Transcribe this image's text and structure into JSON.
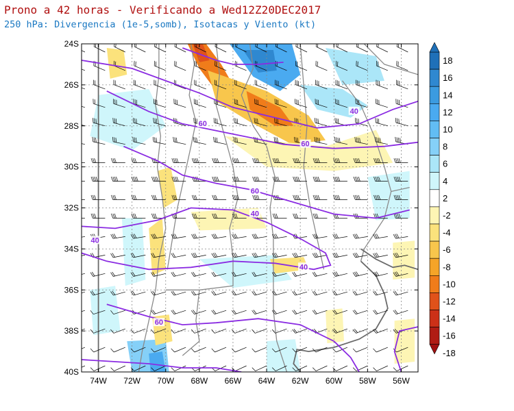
{
  "title": {
    "line1": "Prono a 42 horas - Verificando a Wed12Z20DEC2017",
    "line2": "250 hPa: Divergencia (1e-5,somb), Isotacas y Viento (kt)"
  },
  "map": {
    "lat_labels": [
      "24S",
      "26S",
      "28S",
      "30S",
      "32S",
      "34S",
      "36S",
      "38S",
      "40S"
    ],
    "lon_labels": [
      "74W",
      "72W",
      "70W",
      "68W",
      "66W",
      "64W",
      "62W",
      "60W",
      "58W",
      "56W"
    ],
    "lat_range": [
      -40,
      -24
    ],
    "lon_range": [
      -75,
      -55
    ]
  },
  "isotachs": {
    "units": "kt",
    "color": "#8a2be2",
    "labels": [
      {
        "text": "60",
        "lon": -67.8,
        "lat": -27.9
      },
      {
        "text": "60",
        "lon": -61.7,
        "lat": -28.9
      },
      {
        "text": "40",
        "lon": -58.8,
        "lat": -27.3
      },
      {
        "text": "60",
        "lon": -64.7,
        "lat": -31.2
      },
      {
        "text": "40",
        "lon": -64.7,
        "lat": -32.3
      },
      {
        "text": "40",
        "lon": -74.2,
        "lat": -33.6
      },
      {
        "text": "40",
        "lon": -61.8,
        "lat": -34.9
      },
      {
        "text": "60",
        "lon": -70.4,
        "lat": -37.6
      }
    ]
  },
  "colorbar": {
    "labels": [
      "18",
      "16",
      "14",
      "12",
      "10",
      "8",
      "6",
      "4",
      "2",
      "-2",
      "-4",
      "-6",
      "-8",
      "-10",
      "-12",
      "-14",
      "-16",
      "-18"
    ],
    "colors": [
      "#1f70b8",
      "#2f88d0",
      "#3b9be0",
      "#4aaaf0",
      "#62bdf4",
      "#85d0f8",
      "#abe6f8",
      "#cff6fb",
      "#ffffff",
      "#fdf5b4",
      "#fbe27c",
      "#f8c64c",
      "#f5a428",
      "#f07c1a",
      "#e0521a",
      "#cc3018",
      "#b01c14"
    ]
  },
  "divergence_patches": [
    {
      "color": "#f07c1a",
      "points": [
        [
          -68.7,
          -24.0
        ],
        [
          -67.6,
          -24.0
        ],
        [
          -66.7,
          -25.0
        ],
        [
          -66.0,
          -26.0
        ],
        [
          -67.0,
          -26.3
        ],
        [
          -68.0,
          -25.2
        ]
      ]
    },
    {
      "color": "#e0521a",
      "points": [
        [
          -68.4,
          -24.0
        ],
        [
          -67.8,
          -24.0
        ],
        [
          -67.4,
          -24.8
        ],
        [
          -68.0,
          -24.9
        ]
      ]
    },
    {
      "color": "#f8c64c",
      "points": [
        [
          -67.5,
          -25.3
        ],
        [
          -64.0,
          -26.3
        ],
        [
          -61.5,
          -27.5
        ],
        [
          -60.5,
          -28.7
        ],
        [
          -62.5,
          -28.9
        ],
        [
          -65.0,
          -27.8
        ],
        [
          -67.0,
          -26.8
        ]
      ]
    },
    {
      "color": "#f07c1a",
      "points": [
        [
          -65.2,
          -26.3
        ],
        [
          -63.2,
          -27.1
        ],
        [
          -62.4,
          -28.0
        ],
        [
          -63.5,
          -28.0
        ],
        [
          -65.0,
          -27.2
        ]
      ]
    },
    {
      "color": "#fdf5b4",
      "points": [
        [
          -66.5,
          -28.5
        ],
        [
          -60.5,
          -29.0
        ],
        [
          -57.5,
          -28.2
        ],
        [
          -56.5,
          -29.8
        ],
        [
          -60.0,
          -30.2
        ],
        [
          -64.0,
          -30.0
        ]
      ]
    },
    {
      "color": "#4aaaf0",
      "points": [
        [
          -66.2,
          -24.0
        ],
        [
          -62.5,
          -24.0
        ],
        [
          -62.0,
          -25.5
        ],
        [
          -63.2,
          -26.3
        ],
        [
          -64.8,
          -25.6
        ]
      ]
    },
    {
      "color": "#2f88d0",
      "points": [
        [
          -65.4,
          -24.3
        ],
        [
          -63.6,
          -24.3
        ],
        [
          -63.4,
          -25.3
        ],
        [
          -64.5,
          -25.4
        ]
      ]
    },
    {
      "color": "#abe6f8",
      "points": [
        [
          -62.0,
          -26.0
        ],
        [
          -59.5,
          -26.2
        ],
        [
          -58.0,
          -27.0
        ],
        [
          -59.0,
          -27.6
        ],
        [
          -61.0,
          -27.2
        ]
      ]
    },
    {
      "color": "#abe6f8",
      "points": [
        [
          -60.5,
          -24.2
        ],
        [
          -57.5,
          -24.6
        ],
        [
          -57.0,
          -25.8
        ],
        [
          -59.5,
          -26.0
        ]
      ]
    },
    {
      "color": "#cff6fb",
      "points": [
        [
          -74.0,
          -26.5
        ],
        [
          -71.0,
          -26.2
        ],
        [
          -70.0,
          -28.0
        ],
        [
          -72.0,
          -29.2
        ],
        [
          -74.5,
          -28.5
        ]
      ]
    },
    {
      "color": "#fbe27c",
      "points": [
        [
          -73.5,
          -24.2
        ],
        [
          -72.5,
          -24.3
        ],
        [
          -72.3,
          -25.5
        ],
        [
          -73.3,
          -25.7
        ]
      ]
    },
    {
      "color": "#fbe27c",
      "points": [
        [
          -70.5,
          -30.2
        ],
        [
          -69.7,
          -30.0
        ],
        [
          -69.3,
          -31.6
        ],
        [
          -70.1,
          -32.0
        ]
      ]
    },
    {
      "color": "#fbe27c",
      "points": [
        [
          -71.0,
          -33.0
        ],
        [
          -70.2,
          -32.5
        ],
        [
          -70.0,
          -35.0
        ],
        [
          -70.8,
          -35.3
        ]
      ]
    },
    {
      "color": "#cff6fb",
      "points": [
        [
          -72.6,
          -32.5
        ],
        [
          -71.4,
          -32.5
        ],
        [
          -71.2,
          -35.5
        ],
        [
          -72.4,
          -35.8
        ]
      ]
    },
    {
      "color": "#85d0f8",
      "points": [
        [
          -72.3,
          -38.5
        ],
        [
          -70.0,
          -38.4
        ],
        [
          -69.8,
          -40.0
        ],
        [
          -72.0,
          -40.0
        ]
      ]
    },
    {
      "color": "#4aaaf0",
      "points": [
        [
          -71.0,
          -39.1
        ],
        [
          -70.2,
          -39.0
        ],
        [
          -70.0,
          -40.0
        ],
        [
          -70.9,
          -40.0
        ]
      ]
    },
    {
      "color": "#fbe27c",
      "points": [
        [
          -70.8,
          -37.3
        ],
        [
          -69.8,
          -37.2
        ],
        [
          -69.6,
          -38.5
        ],
        [
          -70.6,
          -38.7
        ]
      ]
    },
    {
      "color": "#cff6fb",
      "points": [
        [
          -74.5,
          -36.0
        ],
        [
          -73.0,
          -35.8
        ],
        [
          -72.7,
          -38.0
        ],
        [
          -74.3,
          -38.2
        ]
      ]
    },
    {
      "color": "#cff6fb",
      "points": [
        [
          -68.0,
          -34.5
        ],
        [
          -63.5,
          -34.3
        ],
        [
          -62.5,
          -35.5
        ],
        [
          -66.0,
          -35.9
        ]
      ]
    },
    {
      "color": "#fdf5b4",
      "points": [
        [
          -68.5,
          -32.2
        ],
        [
          -64.5,
          -32.0
        ],
        [
          -64.0,
          -33.0
        ],
        [
          -68.0,
          -33.1
        ]
      ]
    },
    {
      "color": "#fbe27c",
      "points": [
        [
          -63.8,
          -34.5
        ],
        [
          -61.8,
          -34.4
        ],
        [
          -61.5,
          -35.0
        ],
        [
          -63.5,
          -35.2
        ]
      ]
    },
    {
      "color": "#fdf5b4",
      "points": [
        [
          -60.5,
          -37.0
        ],
        [
          -59.5,
          -36.9
        ],
        [
          -59.4,
          -38.5
        ],
        [
          -60.4,
          -38.6
        ]
      ]
    },
    {
      "color": "#cff6fb",
      "points": [
        [
          -64.0,
          -38.5
        ],
        [
          -62.3,
          -38.4
        ],
        [
          -62.0,
          -40.0
        ],
        [
          -64.0,
          -40.0
        ]
      ]
    },
    {
      "color": "#fdf5b4",
      "points": [
        [
          -56.5,
          -33.7
        ],
        [
          -55.2,
          -33.6
        ],
        [
          -55.2,
          -35.4
        ],
        [
          -56.5,
          -35.5
        ]
      ]
    },
    {
      "color": "#fdf5b4",
      "points": [
        [
          -56.4,
          -37.5
        ],
        [
          -55.2,
          -37.4
        ],
        [
          -55.2,
          -39.5
        ],
        [
          -56.4,
          -39.6
        ]
      ]
    },
    {
      "color": "#cff6fb",
      "points": [
        [
          -58.0,
          -30.5
        ],
        [
          -55.5,
          -30.2
        ],
        [
          -55.5,
          -32.5
        ],
        [
          -57.5,
          -32.6
        ]
      ]
    }
  ],
  "isotach_lines": [
    [
      [
        -75.0,
        -24.8
      ],
      [
        -72.0,
        -25.2
      ],
      [
        -70.0,
        -25.8
      ],
      [
        -68.0,
        -26.4
      ],
      [
        -66.0,
        -27.1
      ],
      [
        -63.0,
        -27.7
      ],
      [
        -61.0,
        -28.1
      ],
      [
        -58.5,
        -27.9
      ],
      [
        -56.5,
        -27.2
      ],
      [
        -55.0,
        -26.8
      ]
    ],
    [
      [
        -73.5,
        -26.3
      ],
      [
        -71.0,
        -27.3
      ],
      [
        -69.0,
        -27.9
      ],
      [
        -66.0,
        -28.4
      ],
      [
        -63.0,
        -28.9
      ],
      [
        -60.0,
        -29.1
      ],
      [
        -57.0,
        -29.0
      ],
      [
        -55.0,
        -28.8
      ]
    ],
    [
      [
        -69.0,
        -24.2
      ],
      [
        -68.0,
        -24.5
      ],
      [
        -67.0,
        -24.8
      ],
      [
        -66.0,
        -25.0
      ],
      [
        -64.5,
        -25.0
      ],
      [
        -63.0,
        -24.9
      ]
    ],
    [
      [
        -72.5,
        -29.0
      ],
      [
        -70.5,
        -29.7
      ],
      [
        -69.0,
        -30.4
      ],
      [
        -67.0,
        -30.8
      ],
      [
        -65.0,
        -31.1
      ],
      [
        -62.5,
        -31.7
      ],
      [
        -60.0,
        -32.3
      ],
      [
        -57.5,
        -32.5
      ],
      [
        -55.5,
        -32.1
      ]
    ],
    [
      [
        -75.0,
        -32.9
      ],
      [
        -73.0,
        -33.0
      ],
      [
        -70.5,
        -32.6
      ],
      [
        -68.5,
        -32.0
      ],
      [
        -66.0,
        -32.1
      ],
      [
        -64.0,
        -32.7
      ],
      [
        -62.0,
        -33.5
      ],
      [
        -60.5,
        -34.2
      ],
      [
        -60.2,
        -34.8
      ],
      [
        -61.2,
        -35.0
      ],
      [
        -63.5,
        -34.7
      ],
      [
        -66.0,
        -34.6
      ],
      [
        -68.5,
        -34.9
      ],
      [
        -71.0,
        -35.0
      ],
      [
        -73.5,
        -34.6
      ],
      [
        -75.0,
        -34.2
      ]
    ],
    [
      [
        -73.5,
        -36.7
      ],
      [
        -71.0,
        -37.3
      ],
      [
        -69.0,
        -37.7
      ],
      [
        -67.0,
        -37.6
      ],
      [
        -64.5,
        -37.4
      ],
      [
        -62.0,
        -37.7
      ],
      [
        -60.0,
        -38.5
      ],
      [
        -59.0,
        -39.3
      ],
      [
        -58.5,
        -40.0
      ]
    ],
    [
      [
        -75.0,
        -39.4
      ],
      [
        -73.0,
        -39.5
      ],
      [
        -71.0,
        -39.6
      ],
      [
        -69.0,
        -39.8
      ],
      [
        -67.0,
        -39.8
      ],
      [
        -65.5,
        -40.0
      ]
    ],
    [
      [
        -56.0,
        -40.0
      ],
      [
        -56.4,
        -39.0
      ],
      [
        -56.1,
        -38.0
      ],
      [
        -55.0,
        -37.8
      ]
    ]
  ],
  "borders": [
    [
      [
        -70.4,
        -24.0
      ],
      [
        -70.4,
        -25.5
      ],
      [
        -70.6,
        -27.0
      ],
      [
        -70.3,
        -28.5
      ],
      [
        -70.5,
        -30.0
      ],
      [
        -70.2,
        -31.5
      ],
      [
        -70.0,
        -33.0
      ],
      [
        -70.4,
        -34.5
      ],
      [
        -70.6,
        -36.0
      ],
      [
        -71.0,
        -37.5
      ],
      [
        -71.4,
        -39.0
      ],
      [
        -71.6,
        -40.0
      ]
    ],
    [
      [
        -68.5,
        -24.0
      ],
      [
        -68.3,
        -25.0
      ],
      [
        -68.6,
        -26.5
      ],
      [
        -68.2,
        -27.8
      ],
      [
        -68.5,
        -29.0
      ],
      [
        -68.9,
        -30.5
      ],
      [
        -69.3,
        -32.0
      ],
      [
        -69.6,
        -33.5
      ],
      [
        -69.9,
        -35.0
      ]
    ],
    [
      [
        -67.0,
        -24.0
      ],
      [
        -66.8,
        -25.5
      ],
      [
        -67.0,
        -27.0
      ],
      [
        -66.5,
        -28.5
      ],
      [
        -66.0,
        -30.0
      ],
      [
        -65.7,
        -31.5
      ],
      [
        -66.2,
        -33.0
      ],
      [
        -66.0,
        -34.5
      ]
    ],
    [
      [
        -65.0,
        -24.0
      ],
      [
        -64.8,
        -25.2
      ],
      [
        -65.5,
        -26.5
      ],
      [
        -64.8,
        -28.0
      ],
      [
        -64.0,
        -29.0
      ]
    ],
    [
      [
        -64.0,
        -29.0
      ],
      [
        -63.5,
        -30.5
      ],
      [
        -63.8,
        -32.0
      ],
      [
        -63.6,
        -33.5
      ],
      [
        -63.6,
        -35.0
      ],
      [
        -63.6,
        -37.0
      ],
      [
        -63.4,
        -38.5
      ],
      [
        -62.8,
        -40.0
      ]
    ],
    [
      [
        -66.0,
        -34.5
      ],
      [
        -66.0,
        -35.8
      ],
      [
        -68.0,
        -36.0
      ],
      [
        -70.0,
        -36.0
      ]
    ],
    [
      [
        -68.0,
        -36.0
      ],
      [
        -68.2,
        -37.5
      ],
      [
        -68.0,
        -38.5
      ],
      [
        -69.0,
        -39.2
      ]
    ],
    [
      [
        -62.0,
        -24.0
      ],
      [
        -61.8,
        -26.0
      ],
      [
        -61.6,
        -28.0
      ],
      [
        -61.8,
        -30.0
      ],
      [
        -61.4,
        -32.0
      ],
      [
        -61.0,
        -33.5
      ],
      [
        -60.6,
        -35.0
      ]
    ],
    [
      [
        -59.5,
        -25.8
      ],
      [
        -58.4,
        -27.0
      ],
      [
        -57.6,
        -28.5
      ],
      [
        -57.0,
        -30.0
      ],
      [
        -56.6,
        -31.2
      ],
      [
        -57.0,
        -32.5
      ],
      [
        -58.2,
        -34.0
      ],
      [
        -58.4,
        -34.6
      ]
    ],
    [
      [
        -58.2,
        -24.0
      ],
      [
        -57.0,
        -25.0
      ],
      [
        -55.0,
        -25.5
      ]
    ],
    [
      [
        -56.6,
        -31.2
      ],
      [
        -55.5,
        -31.0
      ]
    ]
  ],
  "coast": [
    [
      [
        -58.4,
        -34.6
      ],
      [
        -57.5,
        -35.3
      ],
      [
        -57.0,
        -36.2
      ],
      [
        -56.8,
        -36.9
      ],
      [
        -57.5,
        -37.9
      ],
      [
        -58.5,
        -38.4
      ],
      [
        -60.0,
        -38.8
      ],
      [
        -61.5,
        -39.0
      ],
      [
        -62.2,
        -38.9
      ],
      [
        -62.4,
        -39.6
      ],
      [
        -62.0,
        -40.0
      ]
    ],
    [
      [
        -55.0,
        -35.0
      ],
      [
        -55.8,
        -34.8
      ],
      [
        -56.5,
        -34.9
      ],
      [
        -57.5,
        -34.5
      ],
      [
        -58.4,
        -34.0
      ]
    ],
    [
      [
        -74.0,
        -24.0
      ],
      [
        -74.0,
        -40.0
      ]
    ]
  ]
}
